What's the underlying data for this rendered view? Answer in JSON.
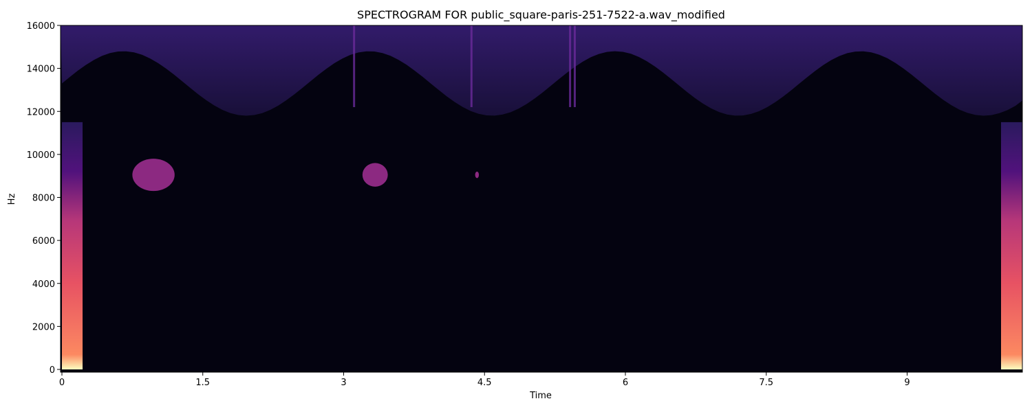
{
  "chart_data": {
    "type": "heatmap",
    "title": "SPECTROGRAM FOR public_square-paris-251-7522-a.wav_modified",
    "xlabel": "Time",
    "ylabel": "Hz",
    "xlim": [
      0,
      10.24
    ],
    "ylim": [
      0,
      16000
    ],
    "x_ticks": [
      0,
      1.5,
      3,
      4.5,
      6,
      7.5,
      9
    ],
    "x_tick_labels": [
      "0",
      "1.5",
      "3",
      "4.5",
      "6",
      "7.5",
      "9"
    ],
    "y_ticks": [
      0,
      2000,
      4000,
      6000,
      8000,
      10000,
      12000,
      14000,
      16000
    ],
    "y_tick_labels": [
      "0",
      "2000",
      "4000",
      "6000",
      "8000",
      "10000",
      "12000",
      "14000",
      "16000"
    ],
    "colormap": "magma",
    "background_color": "#040310",
    "upper_band_color": "#2a1a5e",
    "edge_energy_colors": [
      "#fcfdbf",
      "#fc8961",
      "#b73779",
      "#51127c"
    ],
    "mid_blob_color": "#8c2981",
    "grid": false,
    "legend": "none",
    "energy_regions": [
      {
        "name": "high-frequency-noise-band",
        "t_start": 0.0,
        "t_end": 10.24,
        "hz_low_range": [
          11800,
          14800
        ],
        "hz_high": 16000,
        "level": "low"
      },
      {
        "name": "start-transient",
        "t_start": 0.0,
        "t_end": 0.22,
        "hz_low": 0,
        "hz_high": 11500,
        "level": "high"
      },
      {
        "name": "end-transient",
        "t_start": 10.0,
        "t_end": 10.24,
        "hz_low": 0,
        "hz_high": 11500,
        "level": "high"
      },
      {
        "name": "tone-blob-1",
        "t_start": 0.75,
        "t_end": 1.2,
        "hz_low": 8300,
        "hz_high": 9800,
        "level": "medium"
      },
      {
        "name": "tone-blob-2",
        "t_start": 3.2,
        "t_end": 3.47,
        "hz_low": 8500,
        "hz_high": 9600,
        "level": "medium"
      },
      {
        "name": "tone-blob-3",
        "t_start": 4.4,
        "t_end": 4.44,
        "hz_low": 8900,
        "hz_high": 9200,
        "level": "medium"
      }
    ]
  }
}
